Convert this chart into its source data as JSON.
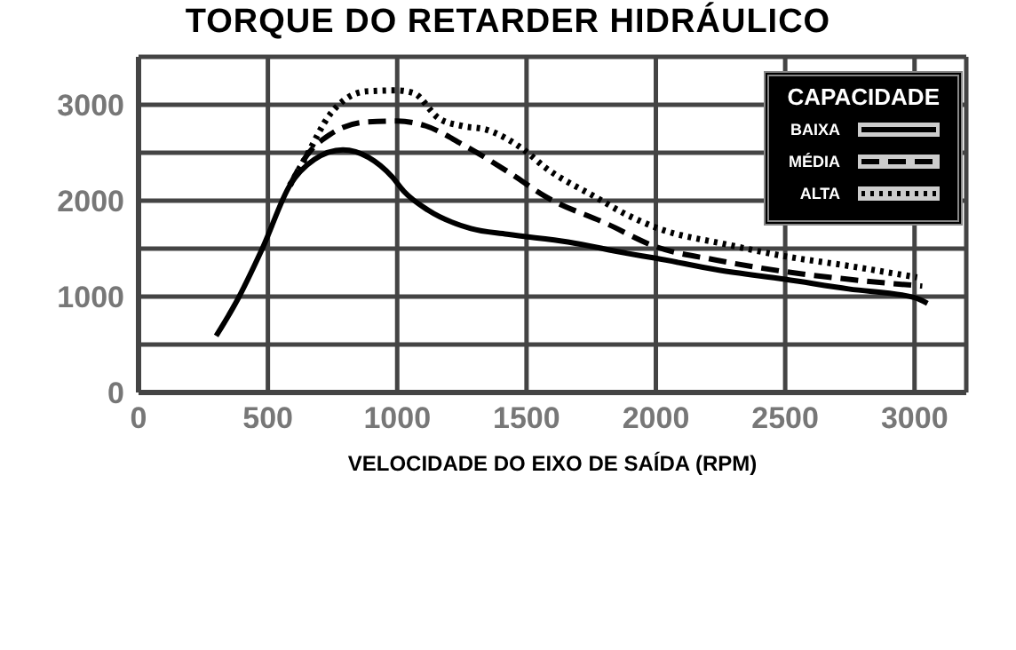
{
  "chart_data": {
    "type": "line",
    "title": "TORQUE DO RETARDER HIDRÁULICO",
    "xlabel": "VELOCIDADE DO EIXO DE SAÍDA (RPM)",
    "legend_title": "CAPACIDADE",
    "legend": "top right",
    "grid": true,
    "marker": "none",
    "xlim": [
      0,
      3200
    ],
    "xticks": [
      0,
      500,
      1000,
      1500,
      2000,
      2500,
      3000
    ],
    "ylim": [
      0,
      3500
    ],
    "yticks": [
      0,
      {
        "value": 500,
        "label": null
      },
      1000,
      {
        "value": 1500,
        "label": null
      },
      2000,
      {
        "value": 2500,
        "label": null
      },
      3000
    ],
    "series": [
      {
        "name": "BAIXA",
        "color": "#000000",
        "line_style": "solid",
        "x": [
          300,
          375,
          480,
          585,
          680,
          790,
          890,
          980,
          1025,
          1120,
          1285,
          1425,
          1660,
          1890,
          2000,
          2235,
          2500,
          2745,
          3000,
          3050
        ],
        "values": [
          590,
          930,
          1510,
          2160,
          2430,
          2530,
          2450,
          2250,
          2100,
          1900,
          1710,
          1650,
          1570,
          1450,
          1400,
          1280,
          1180,
          1080,
          990,
          930
        ]
      },
      {
        "name": "MÉDIA",
        "color": "#000000",
        "line_style": "dashed",
        "x": [
          585,
          650,
          740,
          880,
          1000,
          1110,
          1250,
          1435,
          1575,
          1810,
          2000,
          2235,
          2500,
          2745,
          3030
        ],
        "values": [
          2160,
          2470,
          2690,
          2820,
          2830,
          2780,
          2590,
          2290,
          2040,
          1760,
          1520,
          1380,
          1260,
          1180,
          1110
        ]
      },
      {
        "name": "ALTA",
        "color": "#000000",
        "line_style": "dotted",
        "x": [
          585,
          650,
          740,
          880,
          1000,
          1065,
          1160,
          1250,
          1345,
          1485,
          1575,
          1765,
          1890,
          2000,
          2280,
          2500,
          2745,
          3010
        ],
        "values": [
          2160,
          2470,
          2900,
          3140,
          3150,
          3120,
          2860,
          2780,
          2740,
          2540,
          2340,
          2040,
          1850,
          1720,
          1540,
          1420,
          1320,
          1200
        ]
      }
    ]
  }
}
